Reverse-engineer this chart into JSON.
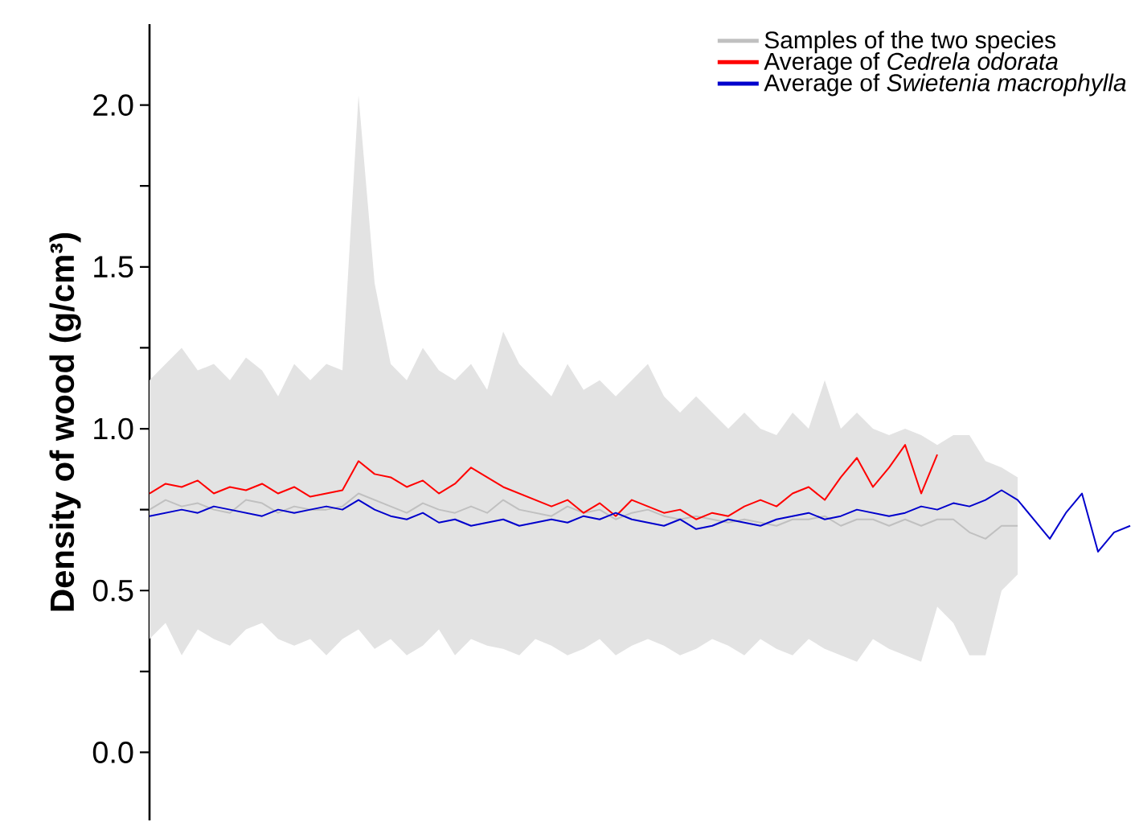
{
  "chart_data": {
    "type": "line",
    "ylabel": "Density of wood (g/cm³)",
    "categories": [
      null,
      null,
      null,
      null,
      null,
      null,
      null,
      null,
      null,
      null,
      null,
      null,
      null,
      null,
      null,
      null,
      null,
      null,
      null,
      null,
      null,
      null,
      null,
      null,
      null,
      null,
      null,
      null,
      null,
      null,
      null,
      null,
      null,
      null,
      null,
      null,
      null,
      null,
      null,
      null,
      null,
      null,
      null,
      null,
      null,
      null,
      null,
      null,
      null,
      null,
      null,
      null,
      null,
      null,
      null,
      null,
      null,
      null,
      null,
      null,
      null,
      null
    ],
    "ylim": [
      -0.21,
      2.25
    ],
    "yticks": [
      {
        "value": 0,
        "label": "0.0"
      },
      {
        "value": 0.25,
        "label": null
      },
      {
        "value": 0.5,
        "label": "0.5"
      },
      {
        "value": 0.75,
        "label": null
      },
      {
        "value": 1,
        "label": "1.0"
      },
      {
        "value": 1.25,
        "label": null
      },
      {
        "value": 1.5,
        "label": "1.5"
      },
      {
        "value": 1.75,
        "label": null
      },
      {
        "value": 2,
        "label": "2.0"
      }
    ],
    "legend": "top right",
    "grid": false,
    "marker": "none",
    "line_style": "solid",
    "series": [
      {
        "name": "Samples of the two species",
        "color": "#c0c0c0",
        "values": [
          0.75,
          0.78,
          0.76,
          0.77,
          0.75,
          0.74,
          0.78,
          0.77,
          0.74,
          0.76,
          0.75,
          0.75,
          0.76,
          0.8,
          0.78,
          0.76,
          0.74,
          0.77,
          0.75,
          0.74,
          0.76,
          0.74,
          0.78,
          0.75,
          0.74,
          0.73,
          0.76,
          0.74,
          0.75,
          0.72,
          0.74,
          0.75,
          0.73,
          0.72,
          0.73,
          0.72,
          0.71,
          0.72,
          0.71,
          0.7,
          0.72,
          0.72,
          0.73,
          0.7,
          0.72,
          0.72,
          0.7,
          0.72,
          0.7,
          0.72,
          0.72,
          0.68,
          0.66,
          0.7,
          0.7,
          null,
          null,
          null,
          null,
          null,
          null,
          null
        ],
        "lower": [
          0.35,
          0.4,
          0.3,
          0.38,
          0.35,
          0.33,
          0.38,
          0.4,
          0.35,
          0.33,
          0.35,
          0.3,
          0.35,
          0.38,
          0.32,
          0.35,
          0.3,
          0.33,
          0.38,
          0.3,
          0.35,
          0.33,
          0.32,
          0.3,
          0.35,
          0.33,
          0.3,
          0.32,
          0.35,
          0.3,
          0.33,
          0.35,
          0.33,
          0.3,
          0.32,
          0.35,
          0.33,
          0.3,
          0.35,
          0.32,
          0.3,
          0.35,
          0.32,
          0.3,
          0.28,
          0.35,
          0.32,
          0.3,
          0.28,
          0.45,
          0.4,
          0.3,
          0.3,
          0.5,
          0.55,
          null,
          null,
          null,
          null,
          null,
          null,
          null
        ],
        "upper": [
          1.15,
          1.2,
          1.25,
          1.18,
          1.2,
          1.15,
          1.22,
          1.18,
          1.1,
          1.2,
          1.15,
          1.2,
          1.18,
          2.03,
          1.45,
          1.2,
          1.15,
          1.25,
          1.18,
          1.15,
          1.2,
          1.12,
          1.3,
          1.2,
          1.15,
          1.1,
          1.2,
          1.12,
          1.15,
          1.1,
          1.15,
          1.2,
          1.1,
          1.05,
          1.1,
          1.05,
          1.0,
          1.05,
          1.0,
          0.98,
          1.05,
          1.0,
          1.15,
          1.0,
          1.05,
          1.0,
          0.98,
          1.0,
          0.98,
          0.95,
          0.98,
          0.98,
          0.9,
          0.88,
          0.85,
          null,
          null,
          null,
          null,
          null,
          null,
          null
        ]
      },
      {
        "name": "Average of *Cedrela odorata*",
        "color": "#ff0000",
        "values": [
          0.8,
          0.83,
          0.82,
          0.84,
          0.8,
          0.82,
          0.81,
          0.83,
          0.8,
          0.82,
          0.79,
          0.8,
          0.81,
          0.9,
          0.86,
          0.85,
          0.82,
          0.84,
          0.8,
          0.83,
          0.88,
          0.85,
          0.82,
          0.8,
          0.78,
          0.76,
          0.78,
          0.74,
          0.77,
          0.73,
          0.78,
          0.76,
          0.74,
          0.75,
          0.72,
          0.74,
          0.73,
          0.76,
          0.78,
          0.76,
          0.8,
          0.82,
          0.78,
          0.85,
          0.91,
          0.82,
          0.88,
          0.95,
          0.8,
          0.92,
          null,
          null,
          null,
          null,
          null,
          null,
          null,
          null,
          null,
          null,
          null,
          null
        ]
      },
      {
        "name": "Average of *Swietenia macrophylla*",
        "color": "#0000cc",
        "values": [
          0.73,
          0.74,
          0.75,
          0.74,
          0.76,
          0.75,
          0.74,
          0.73,
          0.75,
          0.74,
          0.75,
          0.76,
          0.75,
          0.78,
          0.75,
          0.73,
          0.72,
          0.74,
          0.71,
          0.72,
          0.7,
          0.71,
          0.72,
          0.7,
          0.71,
          0.72,
          0.71,
          0.73,
          0.72,
          0.74,
          0.72,
          0.71,
          0.7,
          0.72,
          0.69,
          0.7,
          0.72,
          0.71,
          0.7,
          0.72,
          0.73,
          0.74,
          0.72,
          0.73,
          0.75,
          0.74,
          0.73,
          0.74,
          0.76,
          0.75,
          0.77,
          0.76,
          0.78,
          0.81,
          0.78,
          0.72,
          0.66,
          0.74,
          0.8,
          0.62,
          0.68,
          0.7
        ]
      }
    ]
  }
}
